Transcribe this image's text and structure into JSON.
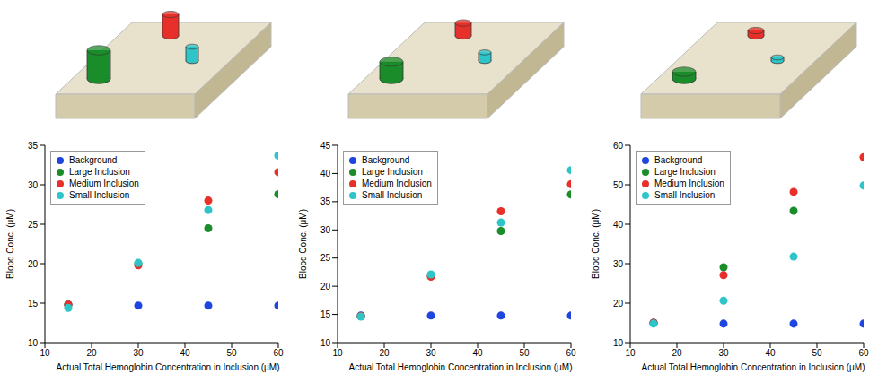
{
  "chart_data": [
    {
      "type": "scatter",
      "x_label": "Actual Total Hemoglobin Concentration in Inclusion (μM)",
      "y_label": "Blood Conc. (μM)",
      "x": [
        15,
        30,
        45,
        60
      ],
      "xlim": [
        10,
        60
      ],
      "xticks": [
        10,
        20,
        30,
        40,
        50,
        60
      ],
      "ylim": [
        10,
        35
      ],
      "yticks": [
        10,
        15,
        20,
        25,
        30,
        35
      ],
      "grid": false,
      "legend": "upper left",
      "series": [
        {
          "name": "Background",
          "color": "#1f45e0",
          "values": [
            14.8,
            14.7,
            14.7,
            14.7
          ]
        },
        {
          "name": "Large Inclusion",
          "color": "#1a8c2a",
          "values": [
            14.8,
            20.0,
            24.5,
            28.8
          ]
        },
        {
          "name": "Medium Inclusion",
          "color": "#e8302a",
          "values": [
            14.8,
            19.8,
            28.0,
            31.6
          ]
        },
        {
          "name": "Small Inclusion",
          "color": "#2ec4c8",
          "values": [
            14.4,
            20.1,
            26.8,
            33.7
          ]
        }
      ]
    },
    {
      "type": "scatter",
      "x_label": "Actual Total Hemoglobin Concentration in Inclusion (μM)",
      "y_label": "Blood Conc. (μM)",
      "x": [
        15,
        30,
        45,
        60
      ],
      "xlim": [
        10,
        60
      ],
      "xticks": [
        10,
        20,
        30,
        40,
        50,
        60
      ],
      "ylim": [
        10,
        45
      ],
      "yticks": [
        10,
        15,
        20,
        25,
        30,
        35,
        40,
        45
      ],
      "grid": false,
      "legend": "upper left",
      "series": [
        {
          "name": "Background",
          "color": "#1f45e0",
          "values": [
            14.8,
            14.8,
            14.8,
            14.8
          ]
        },
        {
          "name": "Large Inclusion",
          "color": "#1a8c2a",
          "values": [
            14.7,
            21.8,
            29.8,
            36.3
          ]
        },
        {
          "name": "Medium Inclusion",
          "color": "#e8302a",
          "values": [
            14.7,
            21.7,
            33.3,
            38.1
          ]
        },
        {
          "name": "Small Inclusion",
          "color": "#2ec4c8",
          "values": [
            14.6,
            22.1,
            31.3,
            40.6
          ]
        }
      ]
    },
    {
      "type": "scatter",
      "x_label": "Actual Total Hemoglobin Concentration in Inclusion (μM)",
      "y_label": "Blood Conc. (μM)",
      "x": [
        15,
        30,
        45,
        60
      ],
      "xlim": [
        10,
        60
      ],
      "xticks": [
        10,
        20,
        30,
        40,
        50,
        60
      ],
      "ylim": [
        10,
        60
      ],
      "yticks": [
        10,
        20,
        30,
        40,
        50,
        60
      ],
      "grid": false,
      "legend": "upper left",
      "series": [
        {
          "name": "Background",
          "color": "#1f45e0",
          "values": [
            15.0,
            14.8,
            14.8,
            14.8
          ]
        },
        {
          "name": "Large Inclusion",
          "color": "#1a8c2a",
          "values": [
            15.0,
            29.1,
            43.4,
            null
          ]
        },
        {
          "name": "Medium Inclusion",
          "color": "#e8302a",
          "values": [
            15.0,
            27.1,
            48.2,
            57.0
          ]
        },
        {
          "name": "Small Inclusion",
          "color": "#2ec4c8",
          "values": [
            14.8,
            20.6,
            31.8,
            49.8
          ]
        }
      ]
    }
  ]
}
